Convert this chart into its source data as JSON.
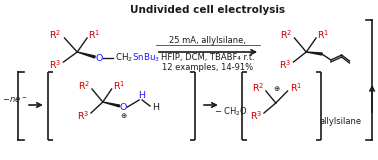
{
  "title": "Undivided cell electrolysis",
  "cond1": "25 mA, allylsilane,",
  "cond2": "HFIP, DCM, TBABF₄ r.t.",
  "cond3": "12 examples, 14-91%",
  "label_ne": "-ne⁻",
  "label_cho": "- CH₂O",
  "label_allylsilane": "allylsilane",
  "red": "#cc0000",
  "blue": "#1a1aff",
  "black": "#1a1a1a",
  "bg": "#ffffff"
}
